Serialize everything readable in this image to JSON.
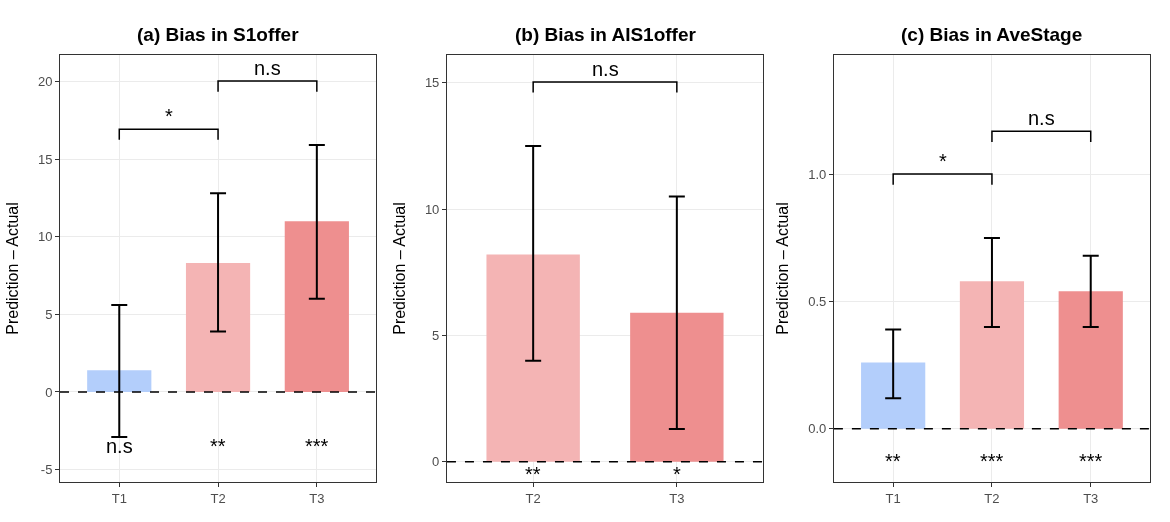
{
  "chart_data": [
    {
      "type": "bar",
      "title": "(a) Bias in S1offer",
      "ylabel": "Prediction – Actual",
      "categories": [
        "T1",
        "T2",
        "T3"
      ],
      "values": [
        1.4,
        8.3,
        11.0
      ],
      "colors": [
        "#b3cefb",
        "#f4b4b4",
        "#ee8f8f"
      ],
      "errors": [
        [
          -2.9,
          5.6
        ],
        [
          3.9,
          12.8
        ],
        [
          6.0,
          15.9
        ]
      ],
      "ylim": [
        -5.8,
        21.7
      ],
      "yticks": [
        -5,
        0,
        5,
        10,
        15,
        20
      ],
      "grid": true,
      "ref_lines": [
        {
          "axis": "y",
          "value": 0,
          "line_style": "dashed",
          "color": "#000000"
        }
      ],
      "annotations": [
        "*",
        "n.s",
        "n.s",
        "**",
        "***"
      ]
    },
    {
      "type": "bar",
      "title": "(b) Bias in AIS1offer",
      "ylabel": "Prediction – Actual",
      "categories": [
        "T2",
        "T3"
      ],
      "values": [
        8.2,
        5.9
      ],
      "colors": [
        "#f4b4b4",
        "#ee8f8f"
      ],
      "errors": [
        [
          4.0,
          12.5
        ],
        [
          1.3,
          10.5
        ]
      ],
      "ylim": [
        -0.8,
        16.1
      ],
      "yticks": [
        0,
        5,
        10,
        15
      ],
      "grid": true,
      "ref_lines": [
        {
          "axis": "y",
          "value": 0,
          "line_style": "dashed",
          "color": "#000000"
        }
      ],
      "annotations": [
        "n.s",
        "**",
        "*"
      ]
    },
    {
      "type": "bar",
      "title": "(c) Bias in AveStage",
      "ylabel": "Prediction – Actual",
      "categories": [
        "T1",
        "T2",
        "T3"
      ],
      "values": [
        0.26,
        0.58,
        0.54
      ],
      "colors": [
        "#b3cefb",
        "#f4b4b4",
        "#ee8f8f"
      ],
      "errors": [
        [
          0.12,
          0.39
        ],
        [
          0.4,
          0.75
        ],
        [
          0.4,
          0.68
        ]
      ],
      "ylim": [
        -0.21,
        1.47
      ],
      "yticks": [
        {
          "value": 0,
          "label": "0.0"
        },
        {
          "value": 0.5,
          "label": "0.5"
        },
        {
          "value": 1,
          "label": "1.0"
        }
      ],
      "grid": true,
      "ref_lines": [
        {
          "axis": "y",
          "value": 0,
          "line_style": "dashed",
          "color": "#000000"
        }
      ],
      "annotations": [
        "*",
        "n.s",
        "**",
        "***",
        "***"
      ]
    }
  ]
}
